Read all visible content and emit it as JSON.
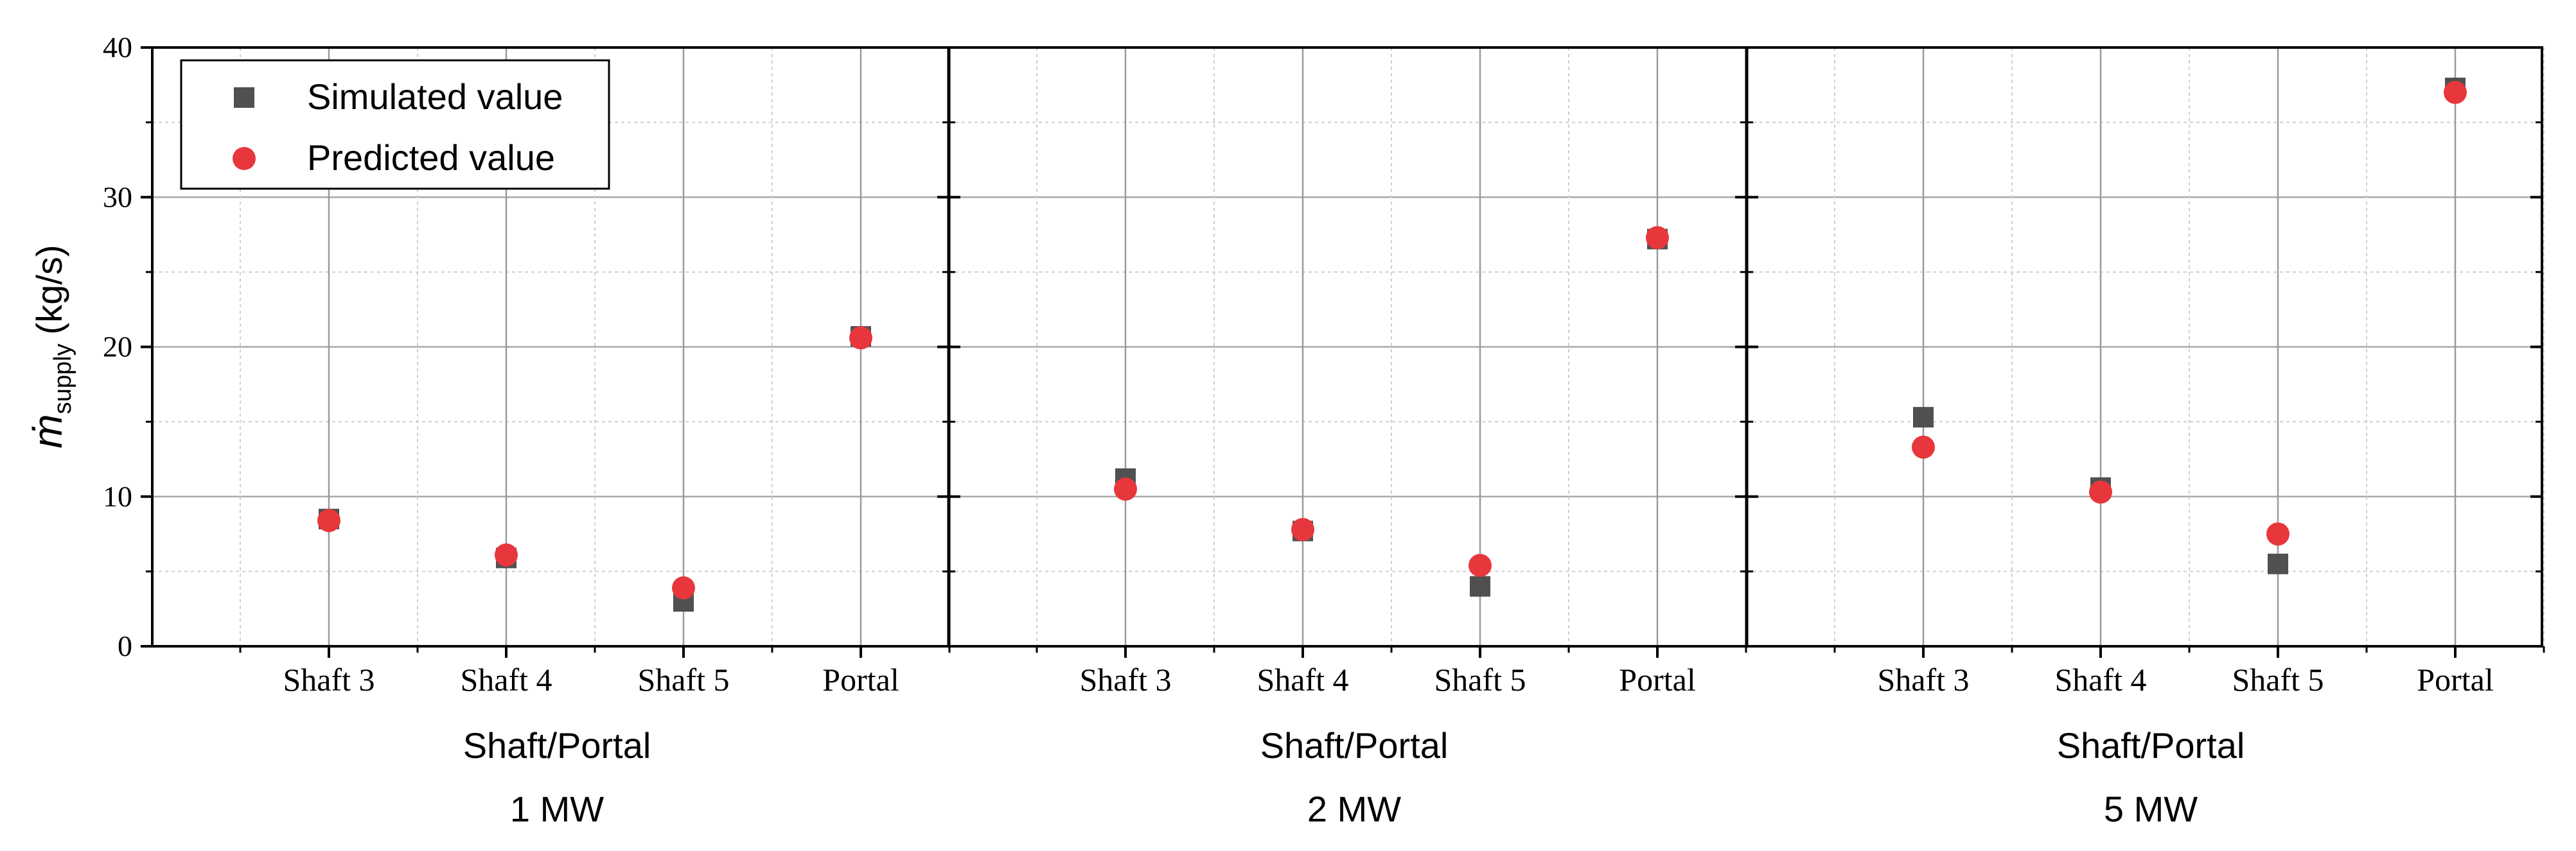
{
  "chart_data": {
    "type": "scatter",
    "ylabel_symbol": "ṁ",
    "ylabel_subscript": "supply",
    "ylabel_unit": "(kg/s)",
    "ylim": [
      0,
      40
    ],
    "yticks": [
      0,
      10,
      20,
      30,
      40
    ],
    "categories": [
      "Shaft 3",
      "Shaft 4",
      "Shaft 5",
      "Portal"
    ],
    "grid": true,
    "legend_position": "top-left",
    "legend": [
      {
        "name": "Simulated value",
        "marker": "square",
        "color": "#505050"
      },
      {
        "name": "Predicted value",
        "marker": "circle",
        "color": "#e8373c"
      }
    ],
    "panels": [
      {
        "xlabel": "Shaft/Portal",
        "condition": "1 MW",
        "series": [
          {
            "name": "Simulated value",
            "values": [
              8.5,
              5.9,
              3.0,
              20.7
            ]
          },
          {
            "name": "Predicted value",
            "values": [
              8.4,
              6.1,
              3.9,
              20.6
            ]
          }
        ]
      },
      {
        "xlabel": "Shaft/Portal",
        "condition": "2 MW",
        "series": [
          {
            "name": "Simulated value",
            "values": [
              11.2,
              7.7,
              4.0,
              27.2
            ]
          },
          {
            "name": "Predicted value",
            "values": [
              10.5,
              7.8,
              5.4,
              27.3
            ]
          }
        ]
      },
      {
        "xlabel": "Shaft/Portal",
        "condition": "5 MW",
        "series": [
          {
            "name": "Simulated value",
            "values": [
              15.3,
              10.6,
              5.5,
              37.3
            ]
          },
          {
            "name": "Predicted value",
            "values": [
              13.3,
              10.3,
              7.5,
              37.0
            ]
          }
        ]
      }
    ]
  }
}
